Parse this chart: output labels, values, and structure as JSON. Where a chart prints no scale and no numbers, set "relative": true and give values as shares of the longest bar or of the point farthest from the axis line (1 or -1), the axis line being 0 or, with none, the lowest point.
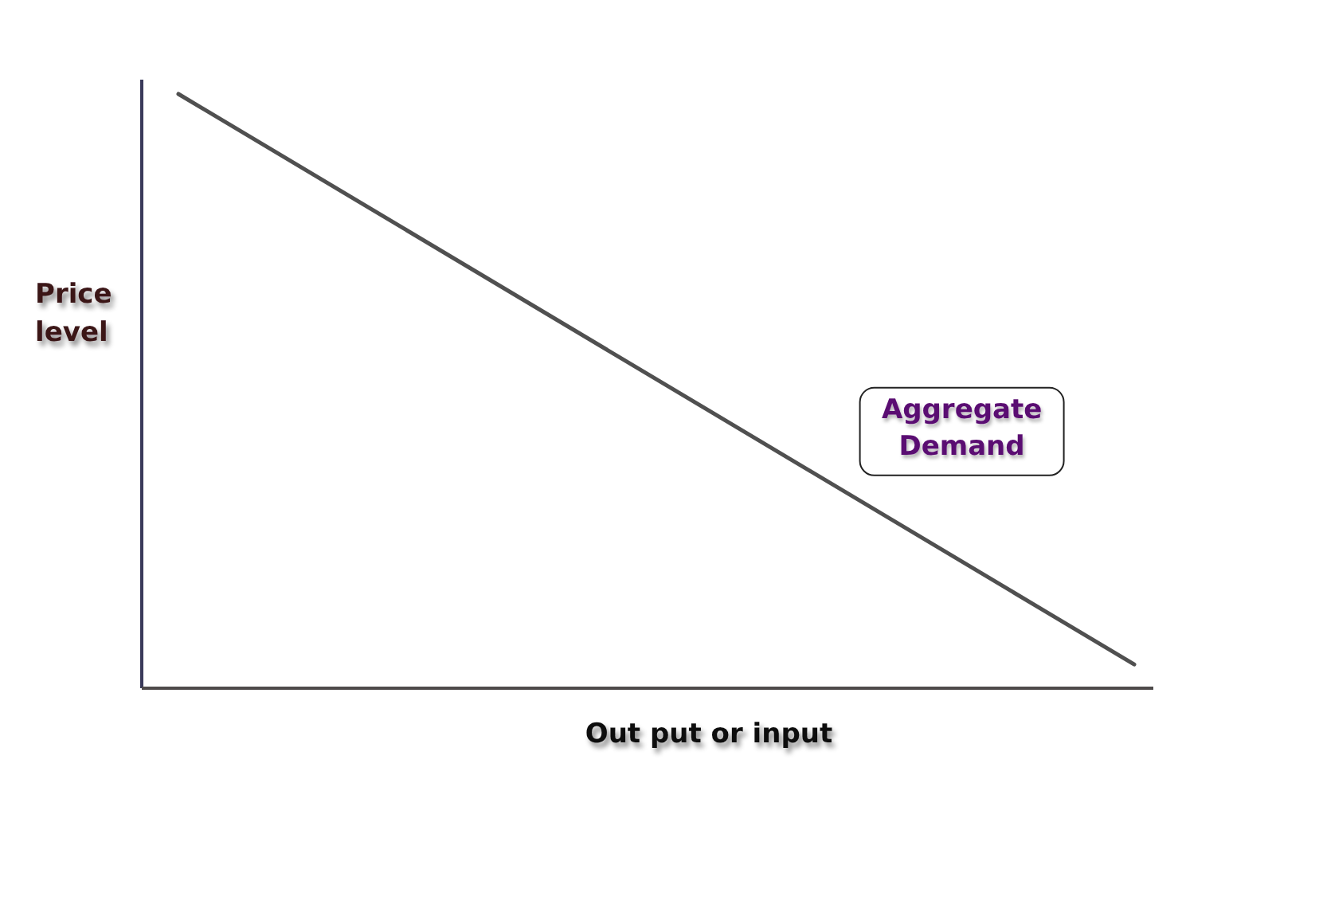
{
  "chart_data": {
    "type": "line",
    "relative": true,
    "categories": [
      null,
      null
    ],
    "series": [
      {
        "name": "Aggregate Demand",
        "color": "#505050",
        "values": [
          1,
          0.04
        ]
      }
    ],
    "xlabel": "Out put or input",
    "ylabel": "Price level",
    "grid": false,
    "legend": false
  }
}
